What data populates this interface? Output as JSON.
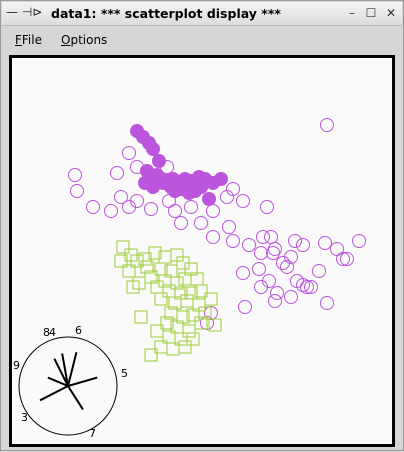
{
  "window": {
    "title": "data1: *** scatterplot display ***",
    "left_controls": "— ⊣⊳",
    "buttons": {
      "minimize": "–",
      "maximize": "☐",
      "close": "✕"
    }
  },
  "menubar": {
    "items": [
      {
        "label": "FFile",
        "mnemonic": "F"
      },
      {
        "label": "Options",
        "mnemonic": "O"
      }
    ]
  },
  "colors": {
    "purple": "#bb55dd",
    "green": "#99cc33",
    "frame": "#000000",
    "plot_bg": "#fafafa"
  },
  "axes_glyph": {
    "labels": [
      "8",
      "4",
      "6",
      "9",
      "5",
      "3",
      "7"
    ]
  },
  "chart_data": {
    "type": "scatter",
    "series": [
      {
        "marker": "filled-circle",
        "color": "#bb55dd",
        "points": [
          [
            136,
            130
          ],
          [
            142,
            136
          ],
          [
            148,
            142
          ],
          [
            152,
            148
          ],
          [
            158,
            160
          ],
          [
            146,
            170
          ],
          [
            150,
            176
          ],
          [
            160,
            178
          ],
          [
            166,
            180
          ],
          [
            172,
            178
          ],
          [
            178,
            182
          ],
          [
            184,
            178
          ],
          [
            190,
            180
          ],
          [
            196,
            182
          ],
          [
            204,
            178
          ],
          [
            212,
            182
          ],
          [
            220,
            178
          ],
          [
            208,
            198
          ],
          [
            200,
            186
          ],
          [
            194,
            190
          ],
          [
            186,
            186
          ],
          [
            180,
            188
          ],
          [
            170,
            186
          ],
          [
            162,
            182
          ],
          [
            156,
            174
          ],
          [
            152,
            186
          ],
          [
            144,
            182
          ],
          [
            174,
            190
          ],
          [
            188,
            192
          ],
          [
            198,
            176
          ]
        ]
      },
      {
        "marker": "open-circle",
        "color": "#bb55dd",
        "points": [
          [
            128,
            152
          ],
          [
            136,
            166
          ],
          [
            116,
            172
          ],
          [
            74,
            174
          ],
          [
            76,
            190
          ],
          [
            92,
            206
          ],
          [
            120,
            196
          ],
          [
            128,
            206
          ],
          [
            110,
            210
          ],
          [
            136,
            200
          ],
          [
            150,
            208
          ],
          [
            168,
            200
          ],
          [
            174,
            210
          ],
          [
            190,
            206
          ],
          [
            180,
            222
          ],
          [
            200,
            222
          ],
          [
            212,
            236
          ],
          [
            228,
            226
          ],
          [
            232,
            188
          ],
          [
            242,
            200
          ],
          [
            226,
            196
          ],
          [
            212,
            210
          ],
          [
            232,
            240
          ],
          [
            248,
            244
          ],
          [
            266,
            206
          ],
          [
            262,
            236
          ],
          [
            270,
            236
          ],
          [
            274,
            248
          ],
          [
            260,
            252
          ],
          [
            258,
            268
          ],
          [
            272,
            252
          ],
          [
            282,
            262
          ],
          [
            290,
            256
          ],
          [
            286,
            266
          ],
          [
            294,
            240
          ],
          [
            302,
            244
          ],
          [
            324,
            242
          ],
          [
            336,
            248
          ],
          [
            358,
            240
          ],
          [
            346,
            258
          ],
          [
            342,
            258
          ],
          [
            318,
            270
          ],
          [
            306,
            286
          ],
          [
            296,
            280
          ],
          [
            268,
            280
          ],
          [
            260,
            286
          ],
          [
            276,
            292
          ],
          [
            290,
            296
          ],
          [
            302,
            284
          ],
          [
            310,
            286
          ],
          [
            326,
            302
          ],
          [
            242,
            272
          ],
          [
            244,
            306
          ],
          [
            274,
            300
          ],
          [
            210,
            312
          ],
          [
            206,
            322
          ],
          [
            200,
            186
          ],
          [
            166,
            166
          ],
          [
            200,
            180
          ],
          [
            326,
            124
          ]
        ]
      },
      {
        "marker": "open-square",
        "color": "#99cc33",
        "points": [
          [
            122,
            246
          ],
          [
            130,
            254
          ],
          [
            136,
            260
          ],
          [
            144,
            258
          ],
          [
            154,
            252
          ],
          [
            164,
            256
          ],
          [
            176,
            254
          ],
          [
            146,
            266
          ],
          [
            160,
            268
          ],
          [
            170,
            270
          ],
          [
            182,
            262
          ],
          [
            190,
            268
          ],
          [
            150,
            276
          ],
          [
            164,
            280
          ],
          [
            176,
            282
          ],
          [
            184,
            278
          ],
          [
            196,
            278
          ],
          [
            138,
            282
          ],
          [
            156,
            286
          ],
          [
            168,
            290
          ],
          [
            180,
            292
          ],
          [
            190,
            292
          ],
          [
            200,
            290
          ],
          [
            160,
            298
          ],
          [
            174,
            302
          ],
          [
            186,
            300
          ],
          [
            198,
            304
          ],
          [
            210,
            298
          ],
          [
            170,
            312
          ],
          [
            182,
            316
          ],
          [
            192,
            314
          ],
          [
            204,
            312
          ],
          [
            166,
            322
          ],
          [
            176,
            326
          ],
          [
            188,
            330
          ],
          [
            200,
            322
          ],
          [
            214,
            324
          ],
          [
            156,
            330
          ],
          [
            168,
            336
          ],
          [
            180,
            338
          ],
          [
            192,
            338
          ],
          [
            160,
            346
          ],
          [
            172,
            348
          ],
          [
            150,
            354
          ],
          [
            184,
            346
          ],
          [
            140,
            316
          ],
          [
            128,
            270
          ],
          [
            120,
            260
          ],
          [
            132,
            286
          ]
        ]
      }
    ]
  }
}
